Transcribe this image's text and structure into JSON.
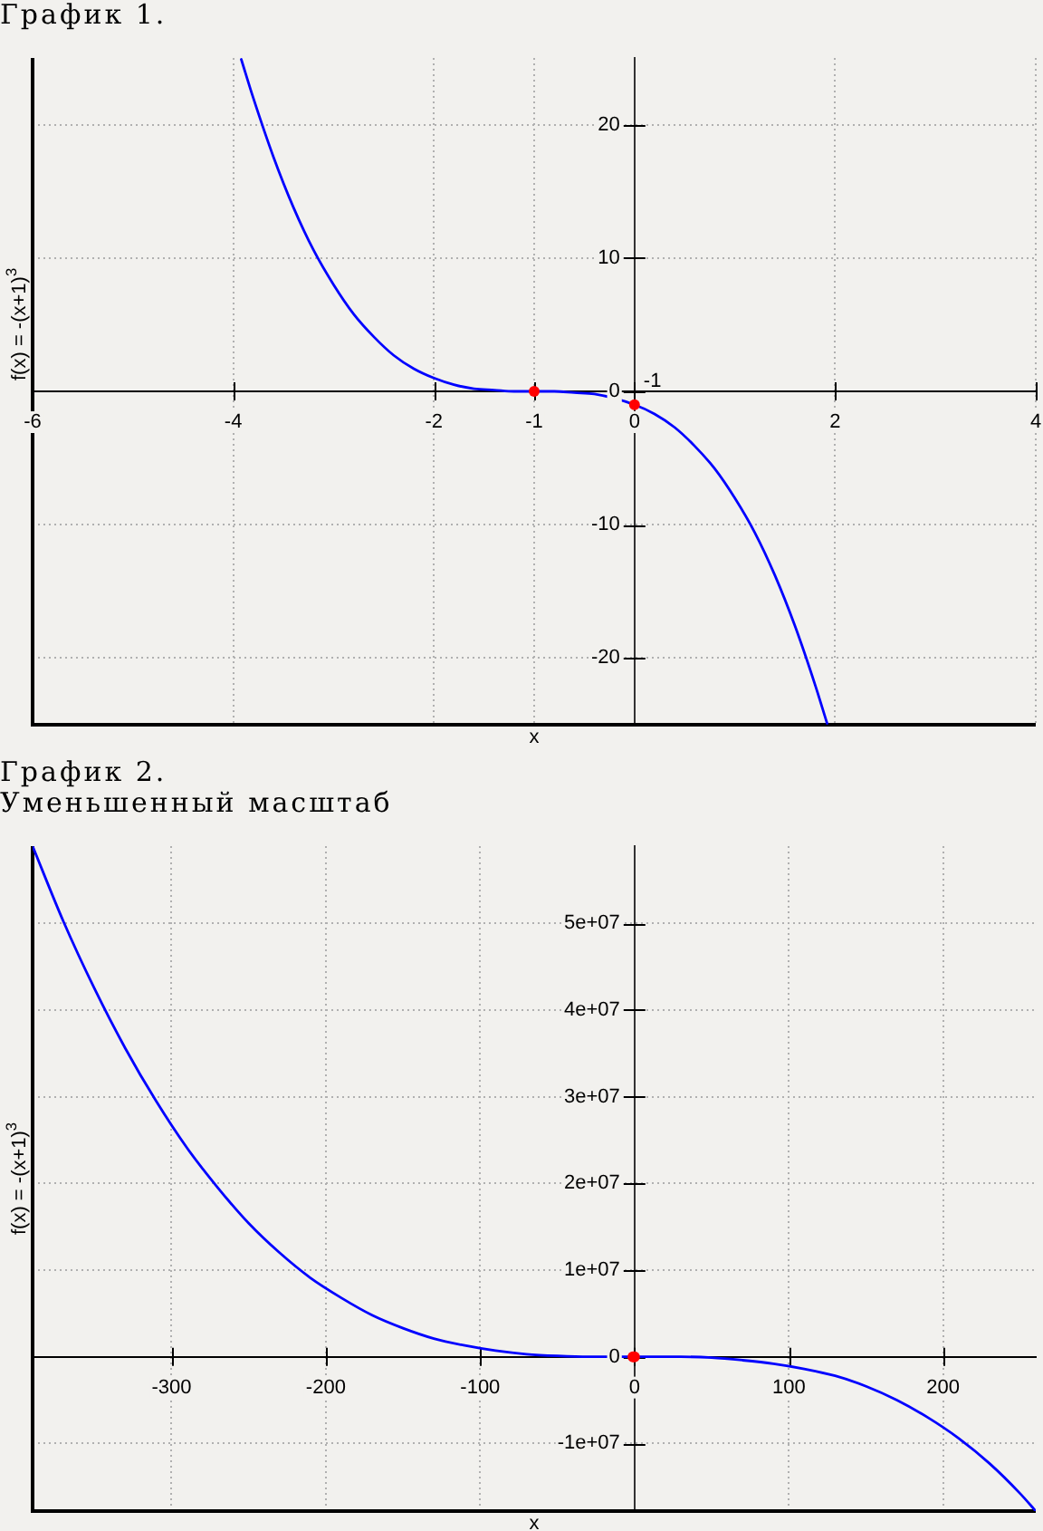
{
  "chart_data": [
    {
      "type": "line",
      "title": "График 1.",
      "xlabel": "x",
      "ylabel": "f(x) = -(x+1)$^{3}$",
      "series": [
        {
          "color": "#0000ff",
          "x": [
            -3.92,
            -3.8,
            -3.6,
            -3.4,
            -3.2,
            -3,
            -2.8,
            -2.6,
            -2.4,
            -2.2,
            -2,
            -1.8,
            -1.6,
            -1.4,
            -1.2,
            -1,
            -0.8,
            -0.6,
            -0.4,
            0,
            0.2,
            0.4,
            0.6,
            0.8,
            1,
            1.2,
            1.4,
            1.6,
            1.8,
            1.92
          ],
          "values": [
            24.9,
            22,
            17.6,
            13.8,
            10.6,
            8,
            5.8,
            4.1,
            2.7,
            1.7,
            1,
            0.5,
            0.2,
            0.1,
            0,
            0,
            0,
            -0.1,
            -0.2,
            -1,
            -1.7,
            -2.7,
            -4.1,
            -5.8,
            -8,
            -10.6,
            -13.8,
            -17.6,
            -22,
            -24.9
          ]
        },
        {
          "type": "scatter",
          "color": "#ff0000",
          "marker": "circle",
          "x": [
            -1,
            0
          ],
          "values": [
            0,
            -1
          ]
        }
      ],
      "xlim": [
        -6,
        4
      ],
      "ylim": [
        -25,
        25
      ],
      "xticks": [
        -6,
        -4,
        -2,
        -1,
        0,
        2,
        4
      ],
      "yticks": [
        -20,
        -10,
        0,
        10,
        20
      ],
      "grid": true,
      "annotations": [
        {
          "text": "-1",
          "x": 0,
          "y": -1
        }
      ]
    },
    {
      "type": "line",
      "title": "График 2.",
      "subtitle": "Уменьшенный масштаб",
      "xlabel": "x",
      "ylabel": "f(x) = -(x+1)$^{3}$",
      "series": [
        {
          "color": "#0000ff",
          "x": [
            -390,
            -370,
            -350,
            -330,
            -310,
            -290,
            -270,
            -250,
            -230,
            -210,
            -190,
            -170,
            -150,
            -130,
            -110,
            -90,
            -70,
            -50,
            -30,
            -10,
            0,
            10,
            30,
            50,
            70,
            90,
            110,
            130,
            150,
            170,
            190,
            210,
            230,
            250,
            260
          ],
          "values": [
            58900000,
            50200000,
            42500000,
            35600000,
            29500000,
            24100000,
            19500000,
            15400000,
            12000000,
            9100000,
            6800000,
            4800000,
            3300000,
            2100000,
            1300000,
            700000,
            300000,
            100000,
            0,
            0,
            0,
            0,
            0,
            -100000,
            -400000,
            -800000,
            -1400000,
            -2200000,
            -3400000,
            -5000000,
            -7000000,
            -9400000,
            -12300000,
            -15800000,
            -17800000
          ]
        },
        {
          "type": "scatter",
          "color": "#ff0000",
          "marker": "circle",
          "x": [
            -1,
            0
          ],
          "values": [
            0,
            0
          ]
        }
      ],
      "xlim": [
        -390,
        260
      ],
      "ylim": [
        -17800000,
        58900000
      ],
      "xticks": [
        -300,
        -200,
        -100,
        0,
        100,
        200
      ],
      "yticks": [
        {
          "value": -10000000,
          "label": "-1e+07"
        },
        0,
        {
          "value": 10000000,
          "label": "1e+07"
        },
        {
          "value": 20000000,
          "label": "2e+07"
        },
        {
          "value": 30000000,
          "label": "3e+07"
        },
        {
          "value": 40000000,
          "label": "4e+07"
        },
        {
          "value": 50000000,
          "label": "5e+07"
        }
      ],
      "grid": true
    }
  ]
}
